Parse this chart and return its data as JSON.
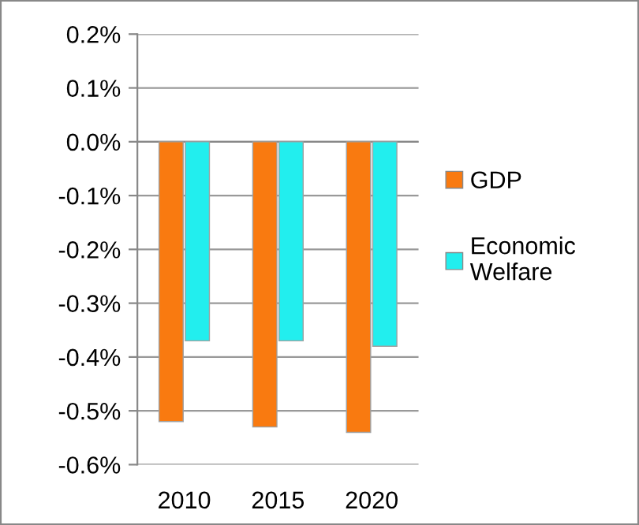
{
  "chart_data": {
    "type": "bar",
    "categories": [
      "2010",
      "2015",
      "2020"
    ],
    "series": [
      {
        "name": "GDP",
        "color": "#f97a10",
        "values": [
          -0.52,
          -0.53,
          -0.54
        ]
      },
      {
        "name": "Economic Welfare",
        "color": "#22eeee",
        "values": [
          -0.37,
          -0.37,
          -0.38
        ]
      }
    ],
    "ylim": [
      -0.6,
      0.2
    ],
    "yticks": [
      {
        "value": 0.2,
        "label": "0.2%"
      },
      {
        "value": 0.1,
        "label": "0.1%"
      },
      {
        "value": 0.0,
        "label": "0.0%"
      },
      {
        "value": -0.1,
        "label": "-0.1%"
      },
      {
        "value": -0.2,
        "label": "-0.2%"
      },
      {
        "value": -0.3,
        "label": "-0.3%"
      },
      {
        "value": -0.4,
        "label": "-0.4%"
      },
      {
        "value": -0.5,
        "label": "-0.5%"
      },
      {
        "value": -0.6,
        "label": "-0.6%"
      }
    ],
    "grid": "y",
    "legend": "right"
  }
}
